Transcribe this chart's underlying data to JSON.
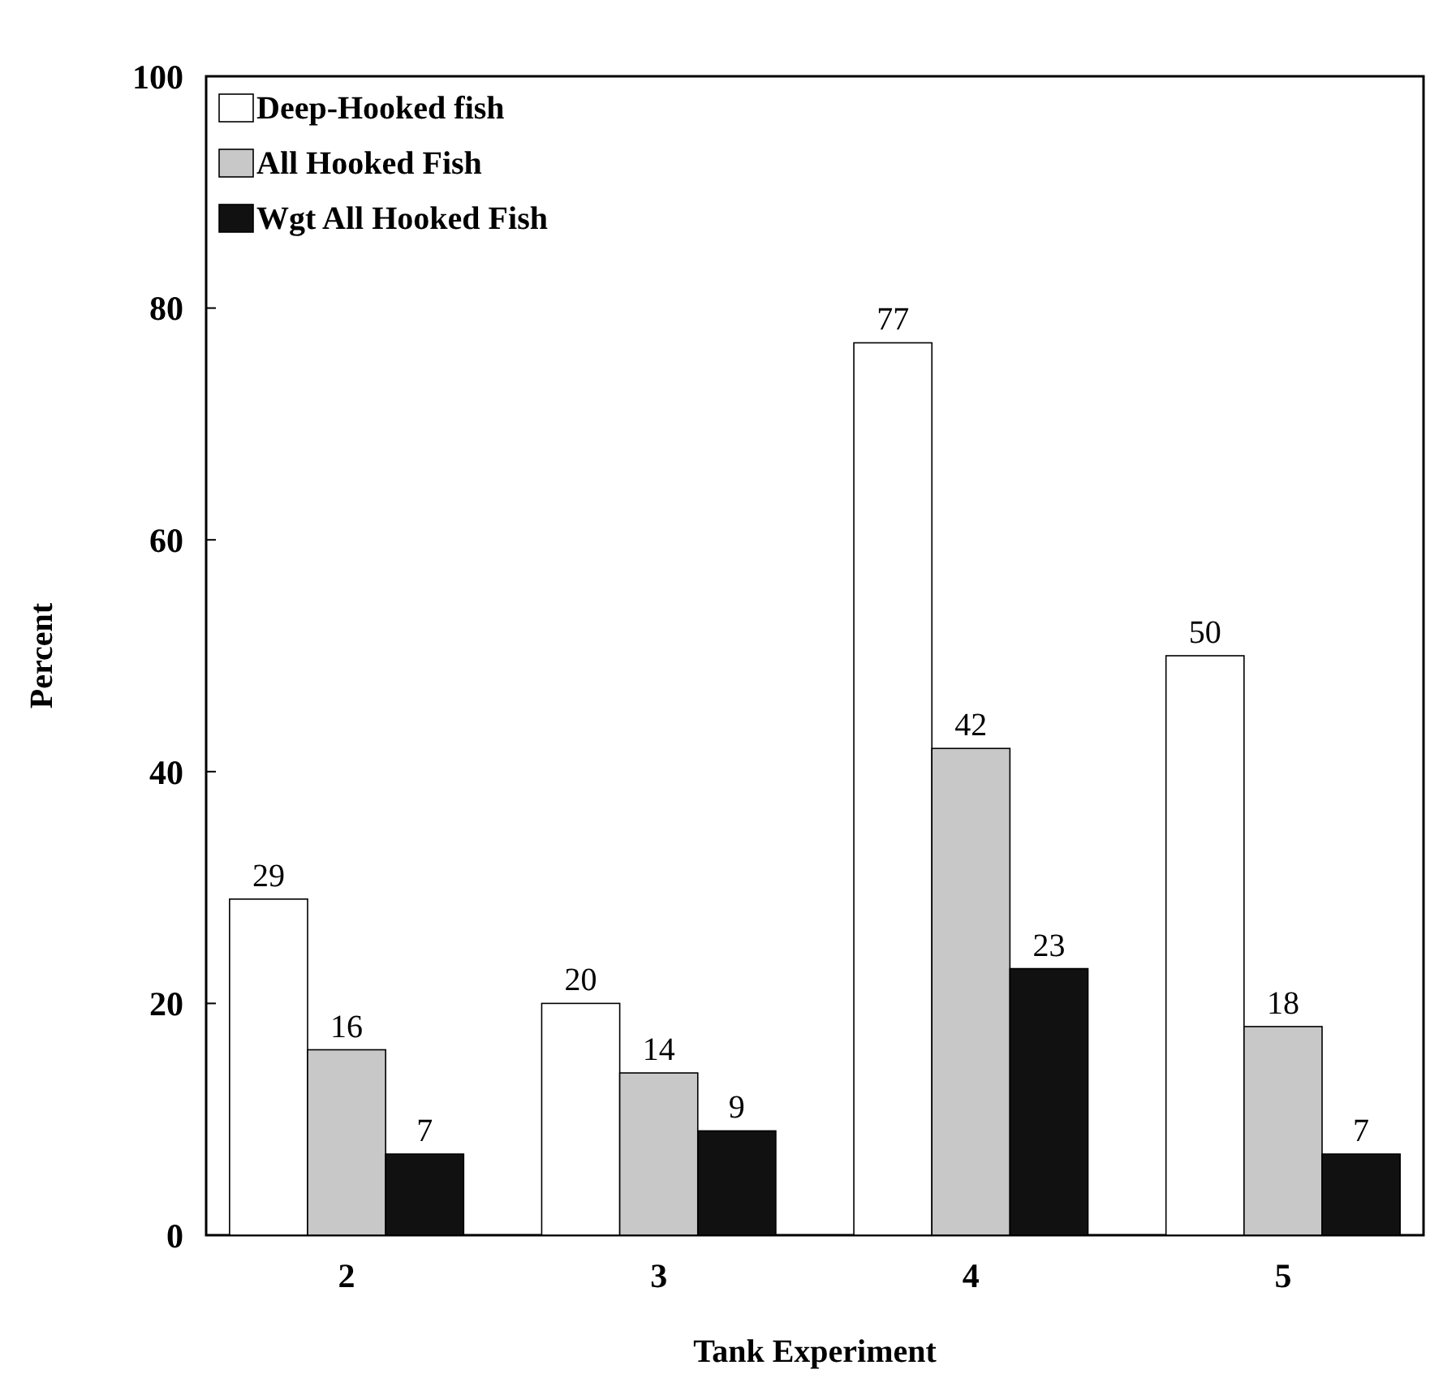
{
  "chart_data": {
    "type": "bar",
    "xlabel": "Tank Experiment",
    "ylabel": "Percent",
    "categories": [
      "2",
      "3",
      "4",
      "5"
    ],
    "series": [
      {
        "name": "Deep-Hooked fish",
        "color": "#ffffff",
        "values": [
          29,
          20,
          77,
          50
        ]
      },
      {
        "name": "All Hooked Fish",
        "color": "#c8c8c8",
        "values": [
          16,
          14,
          42,
          18
        ]
      },
      {
        "name": "Wgt All Hooked Fish",
        "color": "#111111",
        "values": [
          7,
          9,
          23,
          7
        ]
      }
    ],
    "ylim": [
      0,
      100
    ],
    "yticks": [
      0,
      20,
      40,
      60,
      80,
      100
    ],
    "data_labels": true,
    "legend": "top left",
    "grid": false
  }
}
